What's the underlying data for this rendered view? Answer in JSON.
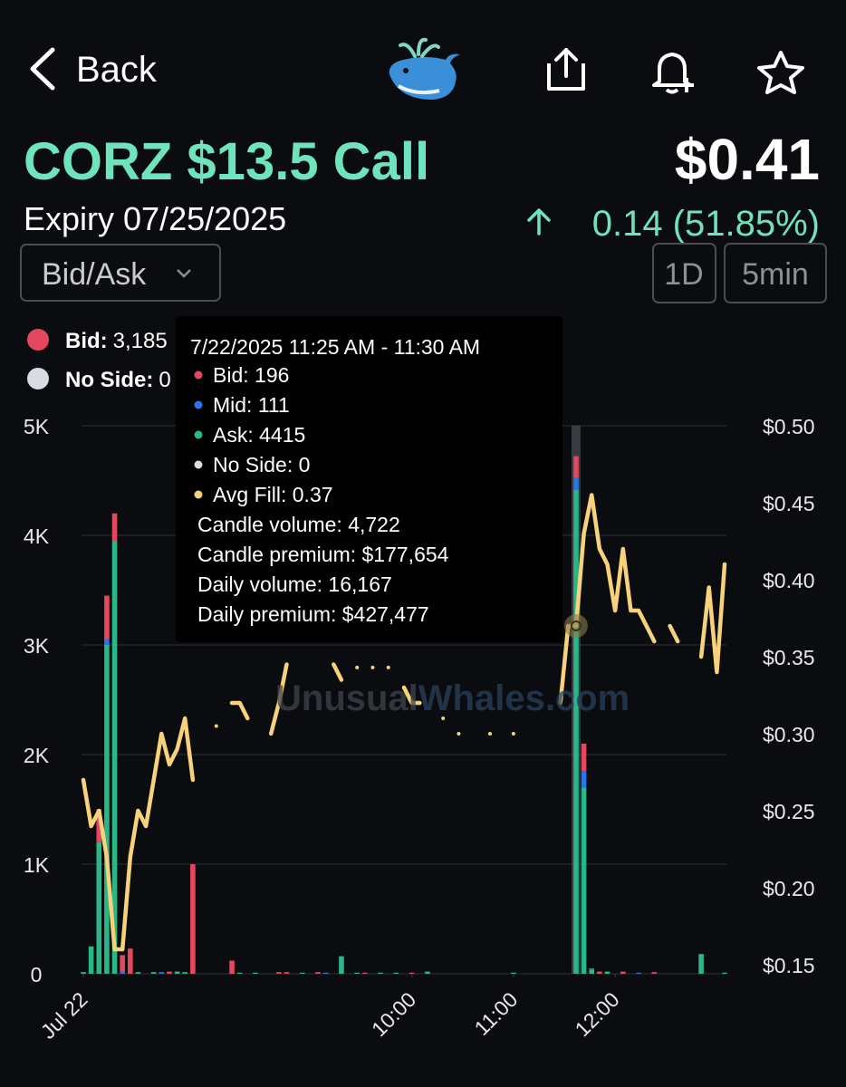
{
  "header": {
    "back": "Back"
  },
  "contract": {
    "title": "CORZ $13.5 Call",
    "price": "$0.41",
    "expiry": "Expiry 07/25/2025",
    "change": "0.14 (51.85%)"
  },
  "controls": {
    "view": "Bid/Ask",
    "range": "1D",
    "interval": "5min"
  },
  "legend": [
    {
      "label": "Bid:",
      "value": "3,185",
      "color": "#e5485e"
    },
    {
      "label": "No Side:",
      "value": "0",
      "color": "#d9dce3"
    }
  ],
  "tooltip": {
    "title": "7/22/2025 11:25 AM - 11:30 AM",
    "rows": [
      "Bid: 196",
      "Mid: 111",
      "Ask: 4415",
      "No Side: 0",
      "Avg Fill: 0.37"
    ],
    "row_colors": [
      "#e5485e",
      "#2a76e8",
      "#2bb688",
      "#d9dce3",
      "#f7d27a"
    ],
    "summary": [
      "Candle volume: 4,722",
      "Candle premium: $177,654",
      "Daily volume: 16,167",
      "Daily premium: $427,477"
    ]
  },
  "watermark": [
    "Unusual",
    "Whales.com"
  ],
  "chart_data": {
    "type": "bar",
    "stacked": true,
    "grid": true,
    "active_index": 63,
    "categories": [
      "Jul 22",
      null,
      null,
      null,
      null,
      null,
      null,
      null,
      null,
      null,
      null,
      null,
      null,
      null,
      null,
      null,
      null,
      null,
      null,
      null,
      null,
      null,
      null,
      null,
      null,
      null,
      null,
      null,
      null,
      null,
      null,
      null,
      null,
      null,
      null,
      null,
      null,
      null,
      null,
      null,
      null,
      null,
      "10:00",
      null,
      null,
      null,
      null,
      null,
      null,
      null,
      null,
      null,
      null,
      null,
      null,
      "11:00",
      null,
      null,
      null,
      null,
      null,
      null,
      null,
      null,
      null,
      null,
      null,
      null,
      "12:00",
      null,
      null,
      null,
      null,
      null,
      null,
      null,
      null,
      null,
      null,
      null,
      null,
      null,
      null
    ],
    "series": [
      {
        "name": "Ask",
        "color": "#2bb688",
        "values": [
          15,
          250,
          1200,
          3000,
          3950,
          0,
          0,
          15,
          0,
          15,
          0,
          0,
          20,
          15,
          0,
          0,
          0,
          0,
          0,
          0,
          10,
          0,
          10,
          0,
          0,
          0,
          0,
          0,
          10,
          0,
          0,
          0,
          0,
          160,
          0,
          10,
          0,
          0,
          10,
          0,
          10,
          0,
          0,
          0,
          20,
          0,
          0,
          0,
          0,
          0,
          0,
          0,
          0,
          0,
          0,
          10,
          0,
          0,
          0,
          0,
          0,
          0,
          0,
          4415,
          1700,
          40,
          0,
          20,
          0,
          0,
          0,
          0,
          0,
          0,
          0,
          0,
          0,
          0,
          0,
          180,
          0,
          0,
          10
        ]
      },
      {
        "name": "Mid",
        "color": "#2a76e8",
        "values": [
          0,
          0,
          0,
          50,
          0,
          20,
          0,
          0,
          0,
          0,
          15,
          0,
          0,
          0,
          0,
          0,
          0,
          0,
          0,
          0,
          0,
          0,
          0,
          0,
          0,
          0,
          0,
          0,
          0,
          0,
          0,
          10,
          0,
          0,
          0,
          0,
          0,
          0,
          0,
          0,
          0,
          0,
          0,
          0,
          0,
          0,
          0,
          0,
          0,
          0,
          0,
          0,
          0,
          0,
          0,
          0,
          0,
          0,
          0,
          0,
          0,
          0,
          0,
          111,
          150,
          10,
          0,
          0,
          0,
          0,
          0,
          10,
          0,
          0,
          0,
          0,
          0,
          0,
          0,
          0,
          0,
          0,
          0
        ]
      },
      {
        "name": "Bid",
        "color": "#e5485e",
        "values": [
          0,
          0,
          300,
          400,
          250,
          150,
          230,
          0,
          0,
          0,
          0,
          20,
          0,
          0,
          1000,
          0,
          0,
          0,
          0,
          120,
          0,
          0,
          0,
          0,
          0,
          15,
          15,
          0,
          0,
          0,
          15,
          0,
          0,
          0,
          0,
          0,
          10,
          0,
          0,
          0,
          0,
          0,
          10,
          0,
          0,
          0,
          0,
          0,
          0,
          0,
          0,
          0,
          0,
          0,
          0,
          0,
          0,
          0,
          0,
          0,
          0,
          0,
          0,
          196,
          250,
          0,
          20,
          0,
          0,
          20,
          0,
          0,
          0,
          15,
          0,
          0,
          0,
          0,
          0,
          0,
          0,
          0,
          0
        ]
      },
      {
        "name": "Avg Fill",
        "type": "line",
        "axis": "y2",
        "color": "#f7d27a",
        "values": [
          0.27,
          0.24,
          0.25,
          0.22,
          0.16,
          0.16,
          0.22,
          0.25,
          0.24,
          0.27,
          0.3,
          0.28,
          0.29,
          0.31,
          0.27,
          null,
          null,
          0.305,
          null,
          0.32,
          0.32,
          0.31,
          null,
          null,
          0.3,
          0.32,
          0.345,
          null,
          null,
          null,
          null,
          null,
          0.345,
          0.335,
          null,
          0.343,
          null,
          0.343,
          null,
          0.343,
          null,
          0.33,
          0.32,
          0.32,
          null,
          null,
          0.31,
          null,
          0.3,
          null,
          null,
          null,
          0.3,
          null,
          null,
          0.3,
          null,
          null,
          null,
          null,
          null,
          0.32,
          0.37,
          0.37,
          0.43,
          0.455,
          0.42,
          0.41,
          0.38,
          0.42,
          0.38,
          0.38,
          0.37,
          0.36,
          null,
          0.37,
          0.36,
          null,
          null,
          0.35,
          0.395,
          0.34,
          0.41
        ]
      }
    ],
    "ylim": [
      0,
      5000
    ],
    "yticks": [
      0,
      {
        "value": 1000,
        "label": "1K"
      },
      {
        "value": 2000,
        "label": "2K"
      },
      {
        "value": 3000,
        "label": "3K"
      },
      {
        "value": 4000,
        "label": "4K"
      },
      {
        "value": 5000,
        "label": "5K"
      }
    ],
    "y2lim": [
      0.1441,
      0.5
    ],
    "y2ticks": [
      {
        "value": 0.15,
        "label": "$0.15"
      },
      {
        "value": 0.2,
        "label": "$0.20"
      },
      {
        "value": 0.25,
        "label": "$0.25"
      },
      {
        "value": 0.3,
        "label": "$0.30"
      },
      {
        "value": 0.35,
        "label": "$0.35"
      },
      {
        "value": 0.4,
        "label": "$0.40"
      },
      {
        "value": 0.45,
        "label": "$0.45"
      },
      {
        "value": 0.5,
        "label": "$0.50"
      }
    ]
  }
}
